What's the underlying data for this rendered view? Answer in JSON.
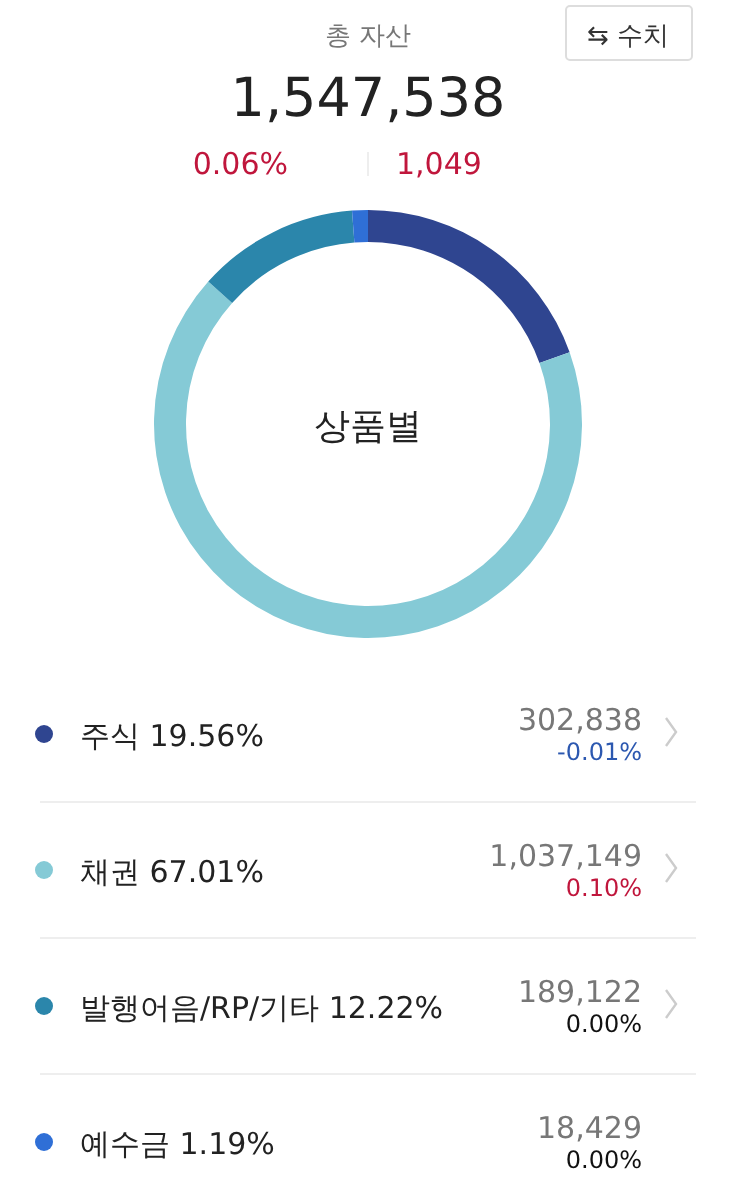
{
  "chart_data": {
    "type": "donut",
    "title": "총 자산",
    "subtitle": "1,547,538",
    "categories": [
      "주식",
      "채권",
      "발행어음/RP/기타",
      "예수금"
    ],
    "values": [
      19.56,
      67.01,
      12.22,
      1.19
    ],
    "value_labels": [
      "19.56%",
      "67.01%",
      "12.22%",
      "1.19%"
    ],
    "colors": [
      "#2f4590",
      "#85cad6",
      "#2b86ab",
      "#2f6fd6"
    ],
    "legend": "bottom",
    "annotations": [
      "0.06%",
      "1,049",
      "⇆ 수치",
      "상품별",
      "302,838",
      "-0.01%",
      "1,037,149",
      "0.10%",
      "189,122",
      "0.00%",
      "18,429",
      "0.00%"
    ]
  }
}
